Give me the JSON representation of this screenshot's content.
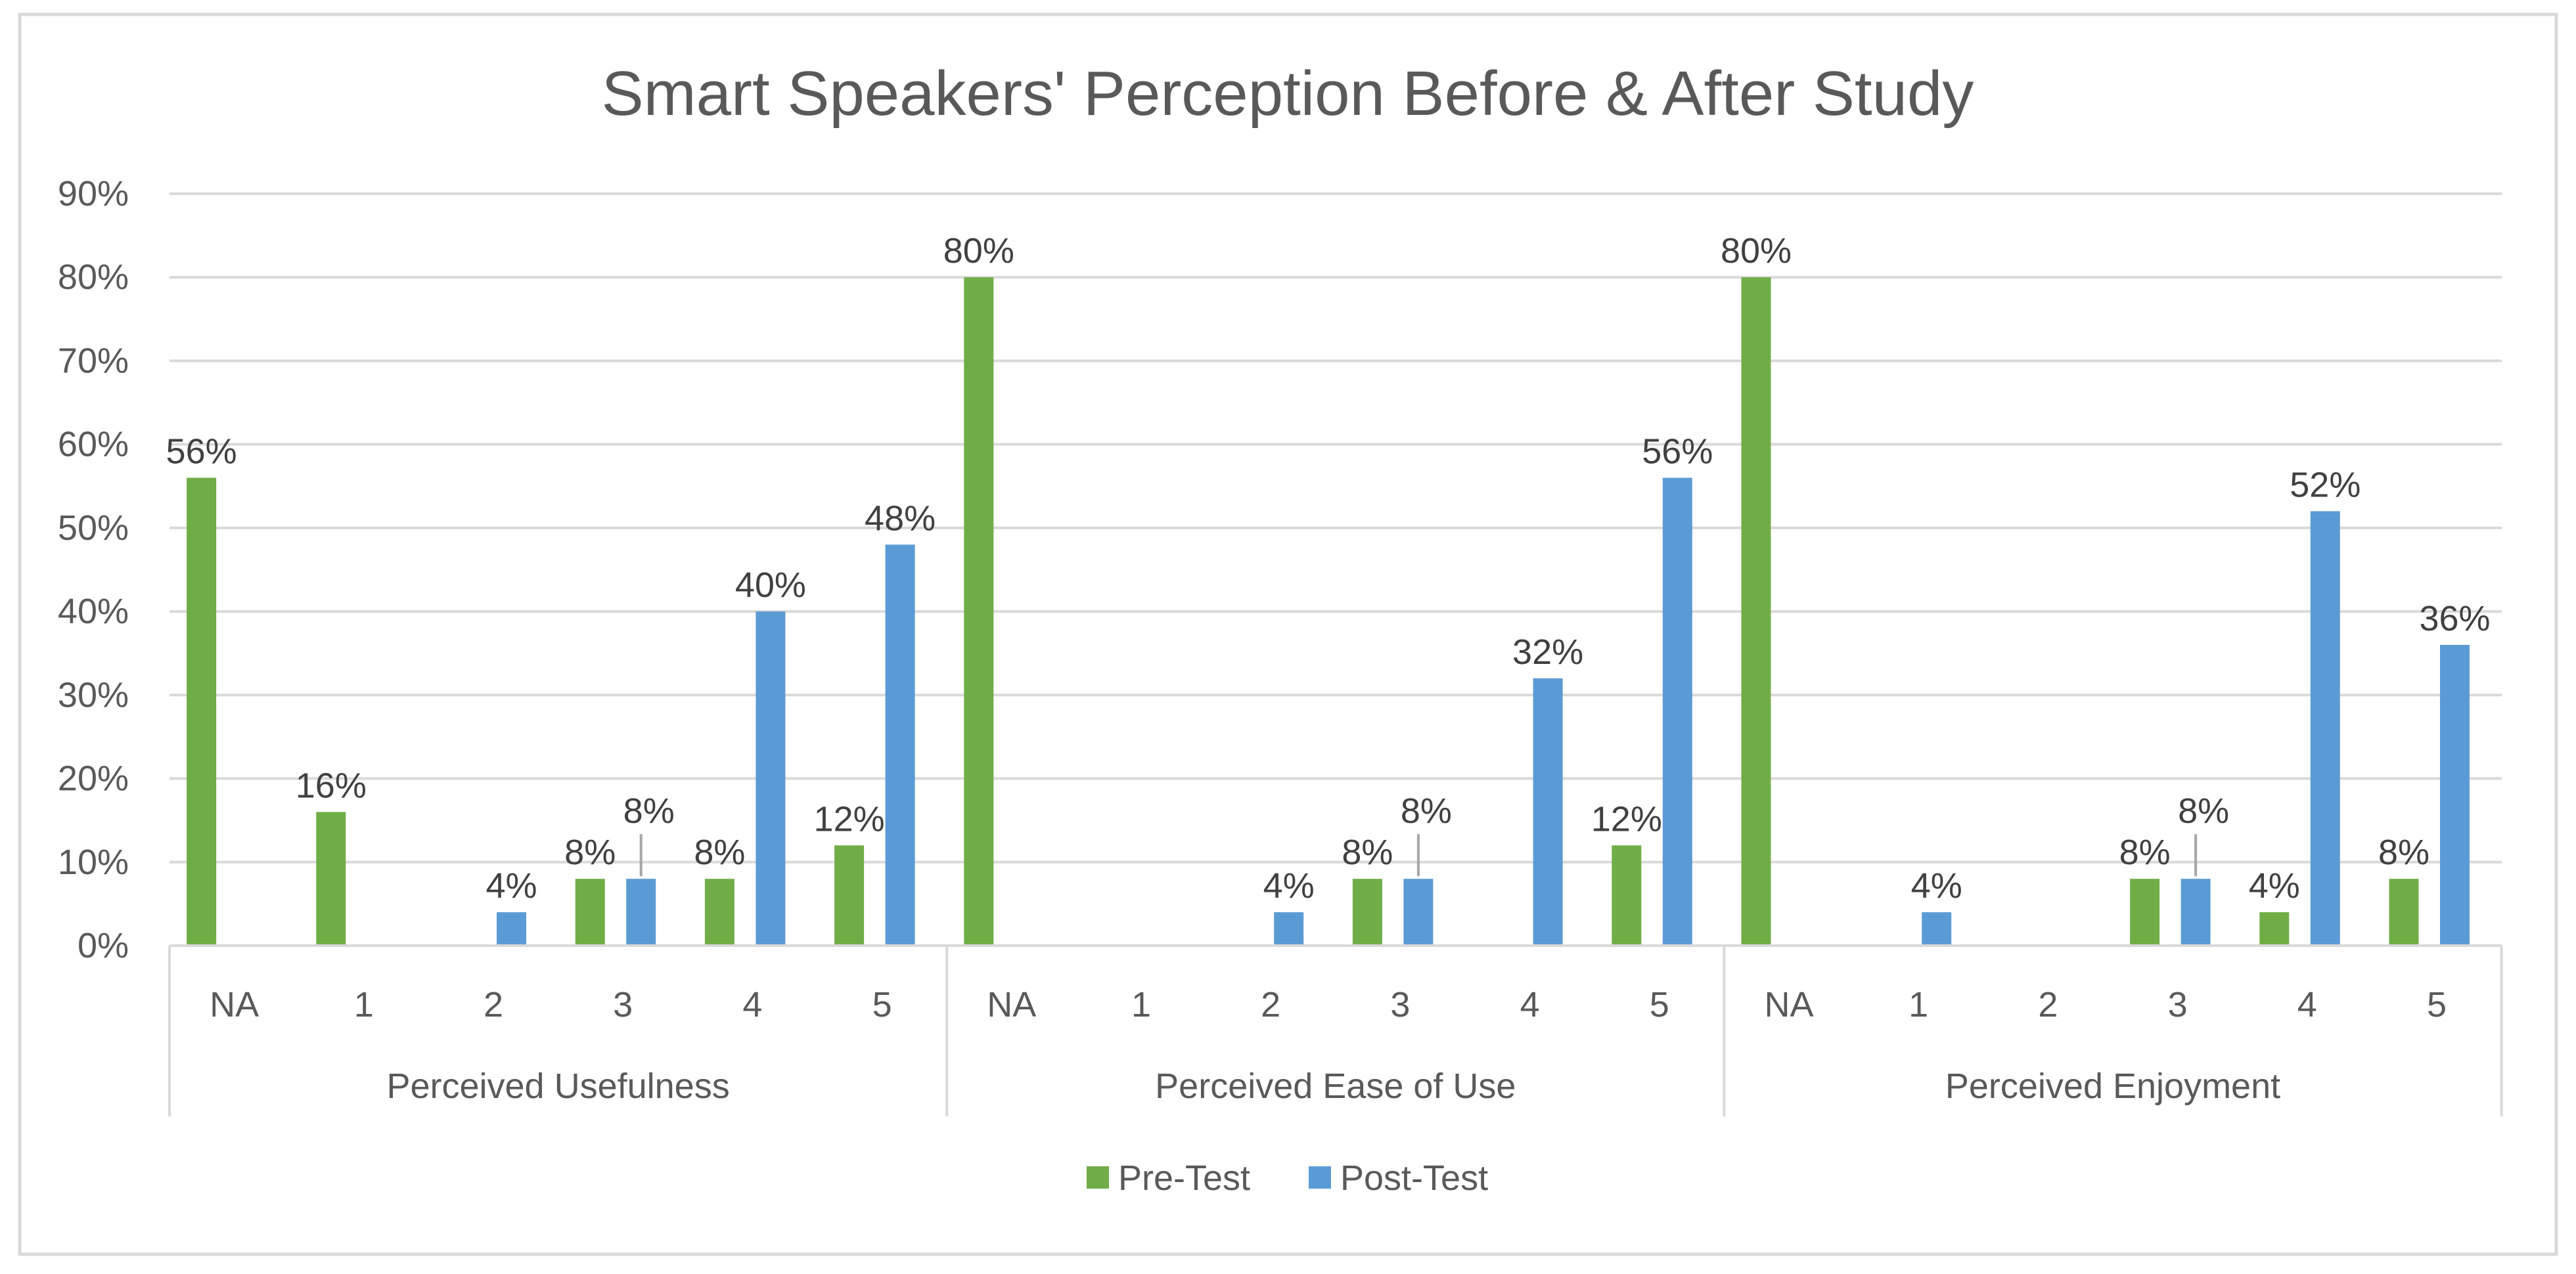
{
  "chart_data": {
    "type": "bar",
    "title": "Smart Speakers' Perception Before & After Study",
    "xlabel": "",
    "ylabel": "",
    "ylim": [
      0,
      90
    ],
    "y_ticks": [
      "0%",
      "10%",
      "20%",
      "30%",
      "40%",
      "50%",
      "60%",
      "70%",
      "80%",
      "90%"
    ],
    "grid": true,
    "legend_position": "bottom",
    "colors": {
      "Pre-Test": "#70ad47",
      "Post-Test": "#5b9bd5"
    },
    "groups": [
      {
        "name": "Perceived Usefulness",
        "categories": [
          "NA",
          "1",
          "2",
          "3",
          "4",
          "5"
        ],
        "pre_labels": [
          "56%",
          "16%",
          "",
          "8%",
          "8%",
          "12%"
        ],
        "post_labels": [
          "",
          "",
          "4%",
          "8%",
          "40%",
          "48%"
        ]
      },
      {
        "name": "Perceived Ease of Use",
        "categories": [
          "NA",
          "1",
          "2",
          "3",
          "4",
          "5"
        ],
        "pre_labels": [
          "80%",
          "",
          "",
          "8%",
          "",
          "12%"
        ],
        "post_labels": [
          "",
          "",
          "4%",
          "8%",
          "32%",
          "56%"
        ]
      },
      {
        "name": "Perceived Enjoyment",
        "categories": [
          "NA",
          "1",
          "2",
          "3",
          "4",
          "5"
        ],
        "pre_labels": [
          "80%",
          "",
          "",
          "8%",
          "4%",
          "8%"
        ],
        "post_labels": [
          "",
          "4%",
          "",
          "8%",
          "52%",
          "36%"
        ]
      }
    ],
    "series": [
      {
        "name": "Pre-Test",
        "values": [
          56,
          16,
          0,
          8,
          8,
          12,
          80,
          0,
          0,
          8,
          0,
          12,
          80,
          0,
          0,
          8,
          4,
          8
        ]
      },
      {
        "name": "Post-Test",
        "values": [
          0,
          0,
          4,
          8,
          40,
          48,
          0,
          0,
          4,
          8,
          32,
          56,
          0,
          4,
          0,
          8,
          52,
          36
        ]
      }
    ]
  }
}
